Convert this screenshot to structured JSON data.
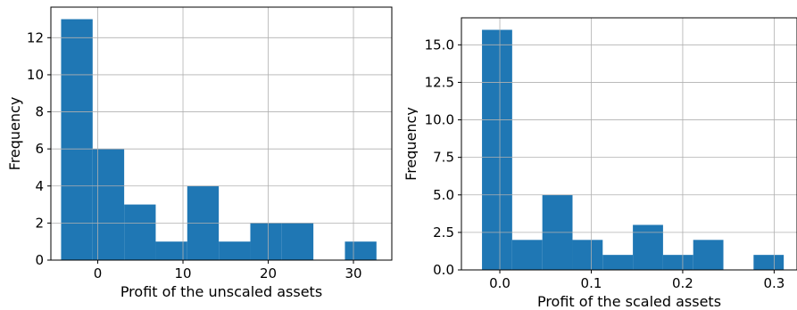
{
  "chart_data": [
    {
      "type": "bar",
      "title": "",
      "xlabel": "Profit of the unscaled assets",
      "ylabel": "Frequency",
      "xlim": [
        -5.5,
        34.5
      ],
      "ylim": [
        0,
        13.65
      ],
      "xticks": [
        0,
        10,
        20,
        30
      ],
      "xtick_labels": [
        "0",
        "10",
        "20",
        "30"
      ],
      "yticks": [
        0,
        2,
        4,
        6,
        8,
        10,
        12
      ],
      "ytick_labels": [
        "0",
        "2",
        "4",
        "6",
        "8",
        "10",
        "12"
      ],
      "grid": true,
      "bar_color": "#1f77b4",
      "bins": [
        {
          "x0": -4.3,
          "x1": -0.6,
          "value": 13
        },
        {
          "x0": -0.6,
          "x1": 3.1,
          "value": 6
        },
        {
          "x0": 3.1,
          "x1": 6.8,
          "value": 3
        },
        {
          "x0": 6.8,
          "x1": 10.5,
          "value": 1
        },
        {
          "x0": 10.5,
          "x1": 14.2,
          "value": 4
        },
        {
          "x0": 14.2,
          "x1": 17.9,
          "value": 1
        },
        {
          "x0": 17.9,
          "x1": 21.6,
          "value": 2
        },
        {
          "x0": 21.6,
          "x1": 25.3,
          "value": 2
        },
        {
          "x0": 25.3,
          "x1": 29.0,
          "value": 0
        },
        {
          "x0": 29.0,
          "x1": 32.7,
          "value": 1
        }
      ]
    },
    {
      "type": "bar",
      "title": "",
      "xlabel": "Profit of the scaled assets",
      "ylabel": "Frequency",
      "xlim": [
        -0.042,
        0.325
      ],
      "ylim": [
        0,
        16.8
      ],
      "xticks": [
        0.0,
        0.1,
        0.2,
        0.3
      ],
      "xtick_labels": [
        "0.0",
        "0.1",
        "0.2",
        "0.3"
      ],
      "yticks": [
        0,
        2.5,
        5,
        7.5,
        10,
        12.5,
        15
      ],
      "ytick_labels": [
        "0.0",
        "2.5",
        "5.0",
        "7.5",
        "10.0",
        "12.5",
        "15.0"
      ],
      "grid": true,
      "bar_color": "#1f77b4",
      "bins": [
        {
          "x0": -0.0195,
          "x1": 0.0135,
          "value": 16
        },
        {
          "x0": 0.0135,
          "x1": 0.0465,
          "value": 2
        },
        {
          "x0": 0.0465,
          "x1": 0.0795,
          "value": 5
        },
        {
          "x0": 0.0795,
          "x1": 0.1125,
          "value": 2
        },
        {
          "x0": 0.1125,
          "x1": 0.1455,
          "value": 1
        },
        {
          "x0": 0.1455,
          "x1": 0.1785,
          "value": 3
        },
        {
          "x0": 0.1785,
          "x1": 0.2115,
          "value": 1
        },
        {
          "x0": 0.2115,
          "x1": 0.2445,
          "value": 2
        },
        {
          "x0": 0.2445,
          "x1": 0.2775,
          "value": 0
        },
        {
          "x0": 0.2775,
          "x1": 0.3105,
          "value": 1
        }
      ]
    }
  ]
}
